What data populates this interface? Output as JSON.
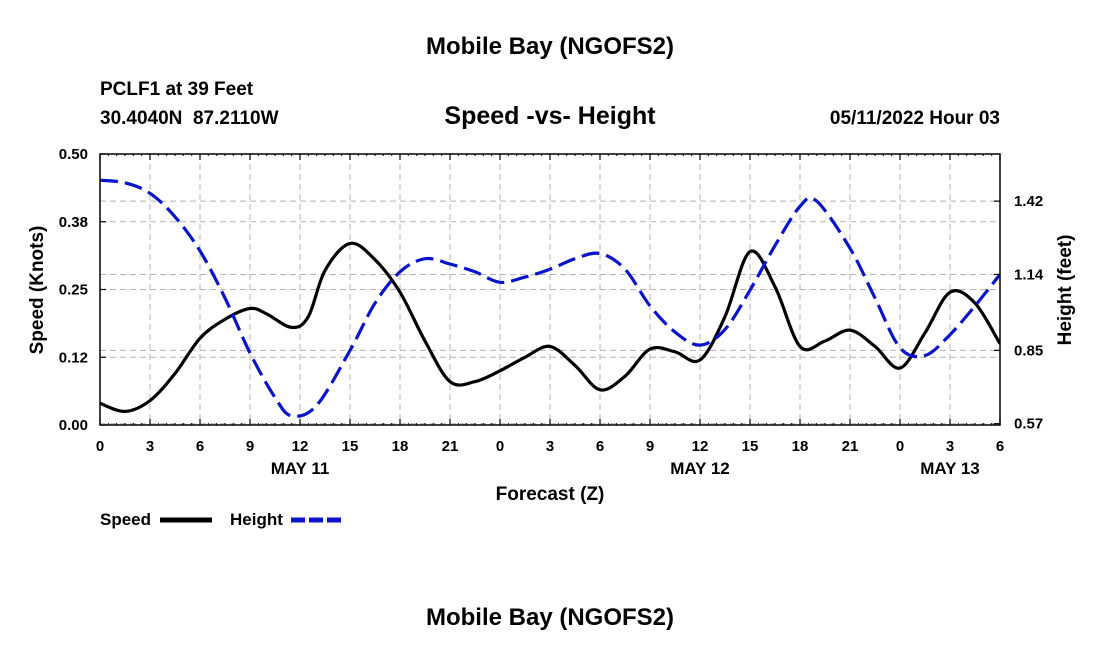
{
  "chart_data": {
    "type": "line",
    "title": "Mobile Bay (NGOFS2)",
    "footer_title": "Mobile Bay (NGOFS2)",
    "subtitle": "Speed -vs- Height",
    "station": "PCLF1 at 39 Feet",
    "location": "30.4040N  87.2110W",
    "datetime": "05/11/2022 Hour 03",
    "xlabel": "Forecast (Z)",
    "ylabel_left": "Speed (Knots)",
    "ylabel_right": "Height (feet)",
    "x_range": [
      0,
      54
    ],
    "ylim_left": [
      0,
      0.5
    ],
    "ylim_right": [
      0.565,
      1.6
    ],
    "x_ticks": [
      {
        "x": 0,
        "label": "0"
      },
      {
        "x": 3,
        "label": "3"
      },
      {
        "x": 6,
        "label": "6"
      },
      {
        "x": 9,
        "label": "9"
      },
      {
        "x": 12,
        "label": "12"
      },
      {
        "x": 15,
        "label": "15"
      },
      {
        "x": 18,
        "label": "18"
      },
      {
        "x": 21,
        "label": "21"
      },
      {
        "x": 24,
        "label": "0"
      },
      {
        "x": 27,
        "label": "3"
      },
      {
        "x": 30,
        "label": "6"
      },
      {
        "x": 33,
        "label": "9"
      },
      {
        "x": 36,
        "label": "12"
      },
      {
        "x": 39,
        "label": "15"
      },
      {
        "x": 42,
        "label": "18"
      },
      {
        "x": 45,
        "label": "21"
      },
      {
        "x": 48,
        "label": "0"
      },
      {
        "x": 51,
        "label": "3"
      },
      {
        "x": 54,
        "label": "6"
      }
    ],
    "date_labels": [
      {
        "x": 12,
        "label": "MAY 11"
      },
      {
        "x": 36,
        "label": "MAY 12"
      },
      {
        "x": 51,
        "label": "MAY 13"
      }
    ],
    "y_ticks_left": [
      {
        "v": 0.0,
        "label": "0.00"
      },
      {
        "v": 0.125,
        "label": "0.12"
      },
      {
        "v": 0.25,
        "label": "0.25"
      },
      {
        "v": 0.375,
        "label": "0.38"
      },
      {
        "v": 0.5,
        "label": "0.50"
      }
    ],
    "y_ticks_right": [
      {
        "v": 0.57,
        "label": "0.57"
      },
      {
        "v": 0.85,
        "label": "0.85"
      },
      {
        "v": 1.14,
        "label": "1.14"
      },
      {
        "v": 1.42,
        "label": "1.42"
      }
    ],
    "legend": [
      {
        "name": "Speed",
        "color": "#000000",
        "dashed": false
      },
      {
        "name": "Height",
        "color": "#0a14c8",
        "dashed": true
      }
    ],
    "series": [
      {
        "name": "Speed",
        "axis": "left",
        "color": "#000000",
        "x": [
          0,
          1.5,
          3,
          4.5,
          6,
          7.5,
          9,
          10,
          11.5,
          12.5,
          13.5,
          15,
          16.5,
          18,
          19.5,
          21,
          22.5,
          24,
          25.5,
          27,
          28.5,
          30,
          31.5,
          33,
          34.5,
          36,
          37.5,
          39,
          40.5,
          42,
          43.5,
          45,
          46.5,
          48,
          49.5,
          51,
          52.5,
          54
        ],
        "values": [
          0.04,
          0.025,
          0.045,
          0.095,
          0.16,
          0.195,
          0.215,
          0.205,
          0.18,
          0.2,
          0.285,
          0.335,
          0.305,
          0.245,
          0.155,
          0.08,
          0.08,
          0.1,
          0.125,
          0.145,
          0.11,
          0.065,
          0.09,
          0.14,
          0.135,
          0.12,
          0.2,
          0.32,
          0.255,
          0.145,
          0.155,
          0.175,
          0.145,
          0.105,
          0.17,
          0.245,
          0.225,
          0.15
        ]
      },
      {
        "name": "Height",
        "axis": "right",
        "color": "#0a14c8",
        "x": [
          0,
          1.5,
          3,
          4.5,
          6,
          7.5,
          9,
          10.5,
          11.5,
          13,
          15,
          16.5,
          18,
          19.5,
          21,
          22.5,
          24,
          25.5,
          27,
          28.5,
          30,
          31.5,
          33,
          34.5,
          36,
          37.5,
          39,
          40.5,
          42,
          43,
          45,
          46.5,
          48,
          49.5,
          51,
          52.5,
          54
        ],
        "values": [
          1.5,
          1.49,
          1.45,
          1.36,
          1.23,
          1.05,
          0.84,
          0.67,
          0.6,
          0.64,
          0.85,
          1.03,
          1.15,
          1.2,
          1.18,
          1.15,
          1.11,
          1.13,
          1.16,
          1.2,
          1.22,
          1.16,
          1.02,
          0.92,
          0.87,
          0.93,
          1.08,
          1.25,
          1.4,
          1.42,
          1.24,
          1.05,
          0.86,
          0.83,
          0.91,
          1.02,
          1.14
        ]
      }
    ]
  }
}
